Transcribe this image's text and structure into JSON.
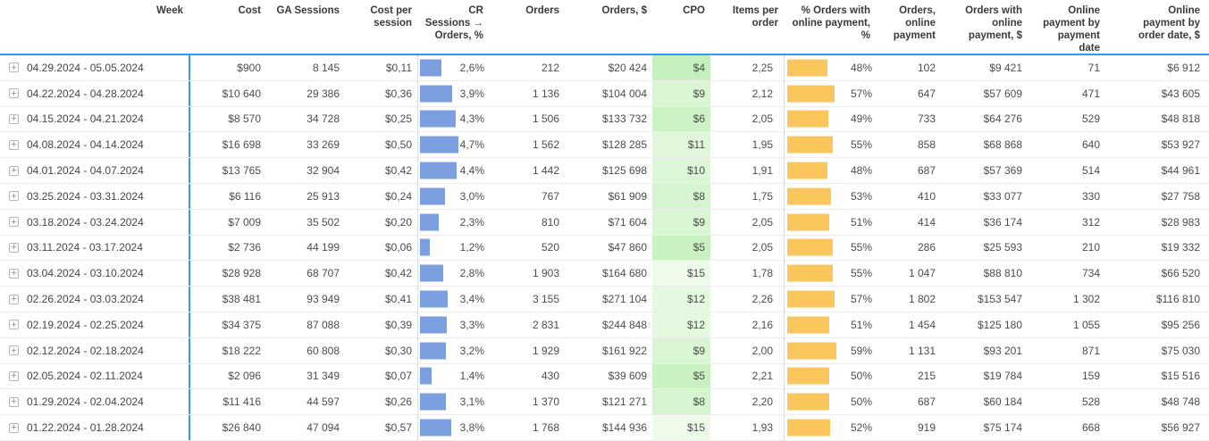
{
  "colors": {
    "header_line": "#2e9cf4",
    "week_divider": "#2e9cf4",
    "bar_blue": "#7ca0df",
    "bar_orange": "#fbc75d",
    "cpo_green_min": "#c5f0bd",
    "cpo_green_max": "#eefbea"
  },
  "icons": {
    "expand_glyph": "+"
  },
  "table": {
    "columns": [
      {
        "key": "week",
        "label": "Week",
        "type": "week"
      },
      {
        "key": "cost",
        "label": "Cost",
        "type": "text"
      },
      {
        "key": "ga_sessions",
        "label": "GA Sessions",
        "type": "text"
      },
      {
        "key": "cost_per_session",
        "label": "Cost per session",
        "type": "text"
      },
      {
        "key": "cr",
        "label": "CR Sessions → Orders, %",
        "type": "bar_blue"
      },
      {
        "key": "orders",
        "label": "Orders",
        "type": "text"
      },
      {
        "key": "orders_usd",
        "label": "Orders, $",
        "type": "text"
      },
      {
        "key": "cpo",
        "label": "CPO",
        "type": "cpo"
      },
      {
        "key": "items_per_order",
        "label": "Items per order",
        "type": "text"
      },
      {
        "key": "pct_online",
        "label": "% Orders with online payment, %",
        "type": "bar_orange"
      },
      {
        "key": "orders_online",
        "label": "Orders, online payment",
        "type": "text"
      },
      {
        "key": "orders_online_usd",
        "label": "Orders with online payment, $",
        "type": "text"
      },
      {
        "key": "online_by_payment_date",
        "label": "Online payment by payment date",
        "type": "text"
      },
      {
        "key": "online_by_order_date_usd",
        "label": "Online payment by order date, $",
        "type": "text"
      }
    ],
    "rows": [
      {
        "week": "04.29.2024 - 05.05.2024",
        "cost": "$900",
        "ga_sessions": "8 145",
        "cost_per_session": "$0,11",
        "cr": "2,6%",
        "cr_value": 2.6,
        "orders": "212",
        "orders_usd": "$20 424",
        "cpo": "$4",
        "cpo_color": "#c5f0bd",
        "items_per_order": "2,25",
        "pct_online": "48%",
        "online_value": 48,
        "orders_online": "102",
        "orders_online_usd": "$9 421",
        "online_by_payment_date": "71",
        "online_by_order_date_usd": "$6 912"
      },
      {
        "week": "04.22.2024 - 04.28.2024",
        "cost": "$10 640",
        "ga_sessions": "29 386",
        "cost_per_session": "$0,36",
        "cr": "3,9%",
        "cr_value": 3.9,
        "orders": "1 136",
        "orders_usd": "$104 004",
        "cpo": "$9",
        "cpo_color": "#daf5d3",
        "items_per_order": "2,12",
        "pct_online": "57%",
        "online_value": 57,
        "orders_online": "647",
        "orders_online_usd": "$57 609",
        "online_by_payment_date": "471",
        "online_by_order_date_usd": "$43 605"
      },
      {
        "week": "04.15.2024 - 04.21.2024",
        "cost": "$8 570",
        "ga_sessions": "34 728",
        "cost_per_session": "$0,25",
        "cr": "4,3%",
        "cr_value": 4.3,
        "orders": "1 506",
        "orders_usd": "$133 732",
        "cpo": "$6",
        "cpo_color": "#cdf2c5",
        "items_per_order": "2,05",
        "pct_online": "49%",
        "online_value": 49,
        "orders_online": "733",
        "orders_online_usd": "$64 276",
        "online_by_payment_date": "529",
        "online_by_order_date_usd": "$48 818"
      },
      {
        "week": "04.08.2024 - 04.14.2024",
        "cost": "$16 698",
        "ga_sessions": "33 269",
        "cost_per_session": "$0,50",
        "cr": "4,7%",
        "cr_value": 4.7,
        "orders": "1 562",
        "orders_usd": "$128 285",
        "cpo": "$11",
        "cpo_color": "#e1f7db",
        "items_per_order": "1,95",
        "pct_online": "55%",
        "online_value": 55,
        "orders_online": "858",
        "orders_online_usd": "$68 868",
        "online_by_payment_date": "640",
        "online_by_order_date_usd": "$53 927"
      },
      {
        "week": "04.01.2024 - 04.07.2024",
        "cost": "$13 765",
        "ga_sessions": "32 904",
        "cost_per_session": "$0,42",
        "cr": "4,4%",
        "cr_value": 4.4,
        "orders": "1 442",
        "orders_usd": "$125 698",
        "cpo": "$10",
        "cpo_color": "#def6d8",
        "items_per_order": "1,91",
        "pct_online": "48%",
        "online_value": 48,
        "orders_online": "687",
        "orders_online_usd": "$57 369",
        "online_by_payment_date": "514",
        "online_by_order_date_usd": "$44 961"
      },
      {
        "week": "03.25.2024 - 03.31.2024",
        "cost": "$6 116",
        "ga_sessions": "25 913",
        "cost_per_session": "$0,24",
        "cr": "3,0%",
        "cr_value": 3.0,
        "orders": "767",
        "orders_usd": "$61 909",
        "cpo": "$8",
        "cpo_color": "#d6f4cf",
        "items_per_order": "1,75",
        "pct_online": "53%",
        "online_value": 53,
        "orders_online": "410",
        "orders_online_usd": "$33 077",
        "online_by_payment_date": "330",
        "online_by_order_date_usd": "$27 758"
      },
      {
        "week": "03.18.2024 - 03.24.2024",
        "cost": "$7 009",
        "ga_sessions": "35 502",
        "cost_per_session": "$0,20",
        "cr": "2,3%",
        "cr_value": 2.3,
        "orders": "810",
        "orders_usd": "$71 604",
        "cpo": "$9",
        "cpo_color": "#daf5d3",
        "items_per_order": "2,05",
        "pct_online": "51%",
        "online_value": 51,
        "orders_online": "414",
        "orders_online_usd": "$36 174",
        "online_by_payment_date": "312",
        "online_by_order_date_usd": "$28 983"
      },
      {
        "week": "03.11.2024 - 03.17.2024",
        "cost": "$2 736",
        "ga_sessions": "44 199",
        "cost_per_session": "$0,06",
        "cr": "1,2%",
        "cr_value": 1.2,
        "orders": "520",
        "orders_usd": "$47 860",
        "cpo": "$5",
        "cpo_color": "#c9f1c1",
        "items_per_order": "2,05",
        "pct_online": "55%",
        "online_value": 55,
        "orders_online": "286",
        "orders_online_usd": "$25 593",
        "online_by_payment_date": "210",
        "online_by_order_date_usd": "$19 332"
      },
      {
        "week": "03.04.2024 - 03.10.2024",
        "cost": "$28 928",
        "ga_sessions": "68 707",
        "cost_per_session": "$0,42",
        "cr": "2,8%",
        "cr_value": 2.8,
        "orders": "1 903",
        "orders_usd": "$164 680",
        "cpo": "$15",
        "cpo_color": "#eefbea",
        "items_per_order": "1,78",
        "pct_online": "55%",
        "online_value": 55,
        "orders_online": "1 047",
        "orders_online_usd": "$88 810",
        "online_by_payment_date": "734",
        "online_by_order_date_usd": "$66 520"
      },
      {
        "week": "02.26.2024 - 03.03.2024",
        "cost": "$38 481",
        "ga_sessions": "93 949",
        "cost_per_session": "$0,41",
        "cr": "3,4%",
        "cr_value": 3.4,
        "orders": "3 155",
        "orders_usd": "$271 104",
        "cpo": "$12",
        "cpo_color": "#e5f8e0",
        "items_per_order": "2,26",
        "pct_online": "57%",
        "online_value": 57,
        "orders_online": "1 802",
        "orders_online_usd": "$153 547",
        "online_by_payment_date": "1 302",
        "online_by_order_date_usd": "$116 810"
      },
      {
        "week": "02.19.2024 - 02.25.2024",
        "cost": "$34 375",
        "ga_sessions": "87 088",
        "cost_per_session": "$0,39",
        "cr": "3,3%",
        "cr_value": 3.3,
        "orders": "2 831",
        "orders_usd": "$244 848",
        "cpo": "$12",
        "cpo_color": "#e5f8e0",
        "items_per_order": "2,16",
        "pct_online": "51%",
        "online_value": 51,
        "orders_online": "1 454",
        "orders_online_usd": "$125 180",
        "online_by_payment_date": "1 055",
        "online_by_order_date_usd": "$95 256"
      },
      {
        "week": "02.12.2024 - 02.18.2024",
        "cost": "$18 222",
        "ga_sessions": "60 808",
        "cost_per_session": "$0,30",
        "cr": "3,2%",
        "cr_value": 3.2,
        "orders": "1 929",
        "orders_usd": "$161 922",
        "cpo": "$9",
        "cpo_color": "#daf5d3",
        "items_per_order": "2,00",
        "pct_online": "59%",
        "online_value": 59,
        "orders_online": "1 131",
        "orders_online_usd": "$93 201",
        "online_by_payment_date": "871",
        "online_by_order_date_usd": "$75 030"
      },
      {
        "week": "02.05.2024 - 02.11.2024",
        "cost": "$2 096",
        "ga_sessions": "31 349",
        "cost_per_session": "$0,07",
        "cr": "1,4%",
        "cr_value": 1.4,
        "orders": "430",
        "orders_usd": "$39 609",
        "cpo": "$5",
        "cpo_color": "#c9f1c1",
        "items_per_order": "2,21",
        "pct_online": "50%",
        "online_value": 50,
        "orders_online": "215",
        "orders_online_usd": "$19 784",
        "online_by_payment_date": "159",
        "online_by_order_date_usd": "$15 516"
      },
      {
        "week": "01.29.2024 - 02.04.2024",
        "cost": "$11 416",
        "ga_sessions": "44 597",
        "cost_per_session": "$0,26",
        "cr": "3,1%",
        "cr_value": 3.1,
        "orders": "1 370",
        "orders_usd": "$121 271",
        "cpo": "$8",
        "cpo_color": "#d6f4cf",
        "items_per_order": "2,20",
        "pct_online": "50%",
        "online_value": 50,
        "orders_online": "687",
        "orders_online_usd": "$60 184",
        "online_by_payment_date": "528",
        "online_by_order_date_usd": "$48 748"
      },
      {
        "week": "01.22.2024 - 01.28.2024",
        "cost": "$26 840",
        "ga_sessions": "47 094",
        "cost_per_session": "$0,57",
        "cr": "3,8%",
        "cr_value": 3.8,
        "orders": "1 768",
        "orders_usd": "$144 936",
        "cpo": "$15",
        "cpo_color": "#eefbea",
        "items_per_order": "1,93",
        "pct_online": "52%",
        "online_value": 52,
        "orders_online": "919",
        "orders_online_usd": "$75 174",
        "online_by_payment_date": "668",
        "online_by_order_date_usd": "$56 927"
      }
    ]
  }
}
